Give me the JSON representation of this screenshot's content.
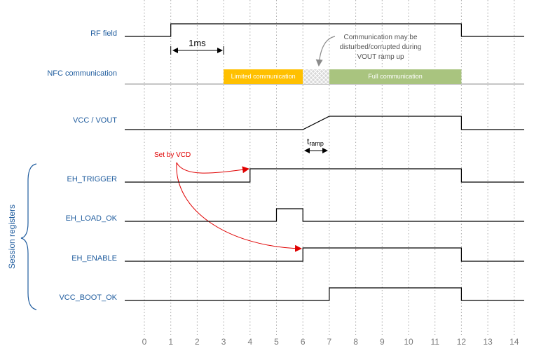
{
  "signals": [
    {
      "label": "RF field"
    },
    {
      "label": "NFC communication"
    },
    {
      "label": "VCC / VOUT"
    },
    {
      "label": "EH_TRIGGER"
    },
    {
      "label": "EH_LOAD_OK"
    },
    {
      "label": "EH_ENABLE"
    },
    {
      "label": "VCC_BOOT_OK"
    }
  ],
  "ticks": [
    "0",
    "1",
    "2",
    "3",
    "4",
    "5",
    "6",
    "7",
    "8",
    "9",
    "10",
    "11",
    "12",
    "13",
    "14"
  ],
  "annotations": {
    "one_ms": "1ms",
    "comm_note": [
      "Communication may be",
      "disturbed/corrupted during",
      "VOUT ramp up"
    ],
    "limited": "Limited communication",
    "full": "Full communication",
    "tramp_main": "t",
    "tramp_sub": "ramp",
    "set_by_vcd": "Set by VCD",
    "session_registers": "Session registers"
  },
  "colors": {
    "limited": "#ffc000",
    "full": "#a9c47f",
    "label": "#1f5c9e",
    "arrow_red": "#e00000"
  }
}
